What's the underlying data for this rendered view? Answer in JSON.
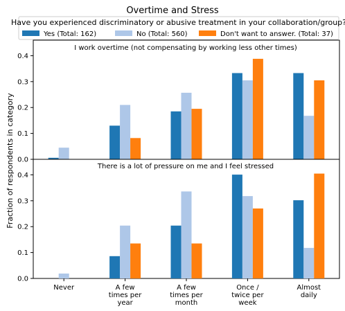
{
  "chart_data": {
    "type": "bar",
    "title": "Overtime and Stress",
    "ylabel": "Fraction of respondents in category",
    "legend": {
      "title": "Have you experienced discriminatory or abusive treatment in your collaboration/group?",
      "placement": "top"
    },
    "series_info": [
      {
        "name": "Yes (Total: 162)",
        "color": "#1f77b4"
      },
      {
        "name": "No (Total: 560)",
        "color": "#aec7e8"
      },
      {
        "name": "Don't want to answer. (Total: 37)",
        "color": "#ff7f0e"
      }
    ],
    "categories": [
      [
        "Never"
      ],
      [
        "A few",
        "times per",
        "year"
      ],
      [
        "A few",
        "times per",
        "month"
      ],
      [
        "Once /",
        "twice per",
        "week"
      ],
      [
        "Almost",
        "daily"
      ]
    ],
    "panels": [
      {
        "title": "I work overtime (not compensating by working less other times)",
        "ylim": [
          0,
          0.46
        ],
        "yticks": [
          "0.0",
          "0.1",
          "0.2",
          "0.3",
          "0.4"
        ],
        "series": [
          {
            "name": "Yes (Total: 162)",
            "values": [
              0.006,
              0.13,
              0.185,
              0.333,
              0.333
            ]
          },
          {
            "name": "No (Total: 560)",
            "values": [
              0.045,
              0.21,
              0.257,
              0.305,
              0.168
            ]
          },
          {
            "name": "Don't want to answer. (Total: 37)",
            "values": [
              0,
              0.082,
              0.195,
              0.388,
              0.305
            ]
          }
        ]
      },
      {
        "title": "There is a lot of pressure on me and I feel stressed",
        "ylim": [
          0,
          0.46
        ],
        "yticks": [
          "0.0",
          "0.1",
          "0.2",
          "0.3",
          "0.4"
        ],
        "series": [
          {
            "name": "Yes (Total: 162)",
            "values": [
              0,
              0.086,
              0.204,
              0.401,
              0.302
            ]
          },
          {
            "name": "No (Total: 560)",
            "values": [
              0.019,
              0.204,
              0.336,
              0.318,
              0.118
            ]
          },
          {
            "name": "Don't want to answer. (Total: 37)",
            "values": [
              0,
              0.135,
              0.135,
              0.27,
              0.405
            ]
          }
        ]
      }
    ]
  }
}
